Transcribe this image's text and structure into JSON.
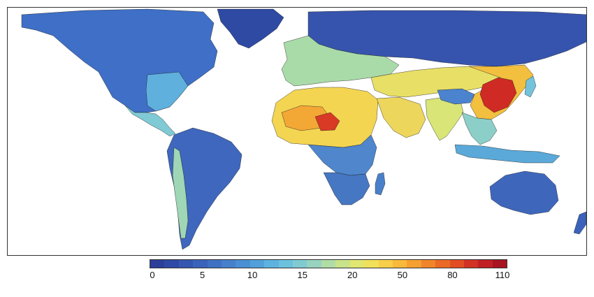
{
  "legend": {
    "ticks": [
      "0",
      "5",
      "10",
      "15",
      "20",
      "50",
      "80",
      "110"
    ],
    "colors": [
      "#2c3f99",
      "#2f4aa6",
      "#3556b1",
      "#3a63bb",
      "#3f71c4",
      "#4680cc",
      "#4a8fd3",
      "#52a0da",
      "#5db2df",
      "#6cc1dd",
      "#80cbd2",
      "#97d3bf",
      "#b0dca5",
      "#c9e38a",
      "#e0e670",
      "#f0e05a",
      "#f7cf48",
      "#f9b93b",
      "#f6a031",
      "#f1852a",
      "#eb6926",
      "#e24d24",
      "#d23224",
      "#bf1f25",
      "#a8141f"
    ]
  },
  "regions": [
    {
      "name": "north-america",
      "color": "#3f6fc6"
    },
    {
      "name": "us-east",
      "color": "#5fb0dd"
    },
    {
      "name": "greenland",
      "color": "#2e4aa3"
    },
    {
      "name": "central-america",
      "color": "#7fcad4"
    },
    {
      "name": "south-america",
      "color": "#3e67bd"
    },
    {
      "name": "andes",
      "color": "#9fd6b6"
    },
    {
      "name": "europe",
      "color": "#a9dba9"
    },
    {
      "name": "russia-asia-north",
      "color": "#3654ad"
    },
    {
      "name": "north-africa",
      "color": "#f3d552"
    },
    {
      "name": "sahara-hotspot",
      "color": "#f3a735"
    },
    {
      "name": "lake-chad-hotspot",
      "color": "#d83a26"
    },
    {
      "name": "central-africa",
      "color": "#4f86cc"
    },
    {
      "name": "southern-africa",
      "color": "#4677c3"
    },
    {
      "name": "arabia",
      "color": "#ecd65c"
    },
    {
      "name": "middle-east-asia",
      "color": "#e8df66"
    },
    {
      "name": "india",
      "color": "#d9e577"
    },
    {
      "name": "china",
      "color": "#f2bf3e"
    },
    {
      "name": "north-china-hotspot",
      "color": "#cf2a24"
    },
    {
      "name": "tibet",
      "color": "#4b83cf"
    },
    {
      "name": "southeast-asia",
      "color": "#8bcfc8"
    },
    {
      "name": "indonesia",
      "color": "#5aa9d9"
    },
    {
      "name": "japan",
      "color": "#74c3da"
    },
    {
      "name": "australia",
      "color": "#3e67bc"
    },
    {
      "name": "new-zealand",
      "color": "#3c62ba"
    },
    {
      "name": "madagascar",
      "color": "#4a80c9"
    }
  ]
}
